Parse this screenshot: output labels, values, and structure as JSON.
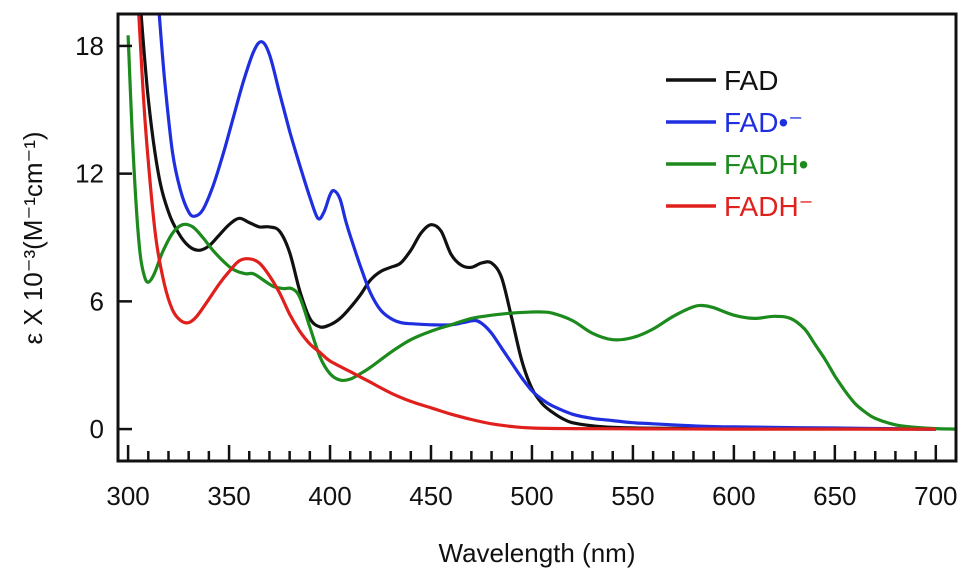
{
  "chart_data": {
    "type": "line",
    "xlabel": "Wavelength (nm)",
    "ylabel": "ε X 10⁻³(M⁻¹cm⁻¹)",
    "xlim": [
      295,
      710
    ],
    "ylim": [
      -1.5,
      19.5
    ],
    "x_ticks": [
      300,
      350,
      400,
      450,
      500,
      550,
      600,
      650,
      700
    ],
    "y_ticks": [
      0,
      6,
      12,
      18
    ],
    "legend_position": "top-right",
    "grid": false,
    "series": [
      {
        "name": "FAD",
        "color": "#111111",
        "points": [
          [
            306,
            20
          ],
          [
            310,
            15.5
          ],
          [
            315,
            12
          ],
          [
            320,
            10.2
          ],
          [
            325,
            9.2
          ],
          [
            330,
            8.6
          ],
          [
            335,
            8.4
          ],
          [
            340,
            8.6
          ],
          [
            345,
            9.1
          ],
          [
            350,
            9.6
          ],
          [
            355,
            9.9
          ],
          [
            360,
            9.7
          ],
          [
            365,
            9.5
          ],
          [
            370,
            9.5
          ],
          [
            375,
            9.3
          ],
          [
            380,
            8.3
          ],
          [
            385,
            6.5
          ],
          [
            390,
            5.2
          ],
          [
            395,
            4.8
          ],
          [
            400,
            4.9
          ],
          [
            405,
            5.2
          ],
          [
            410,
            5.7
          ],
          [
            415,
            6.3
          ],
          [
            420,
            7.0
          ],
          [
            425,
            7.4
          ],
          [
            430,
            7.6
          ],
          [
            435,
            7.8
          ],
          [
            440,
            8.4
          ],
          [
            445,
            9.2
          ],
          [
            450,
            9.6
          ],
          [
            455,
            9.3
          ],
          [
            460,
            8.2
          ],
          [
            465,
            7.7
          ],
          [
            470,
            7.6
          ],
          [
            475,
            7.8
          ],
          [
            480,
            7.8
          ],
          [
            485,
            7.1
          ],
          [
            490,
            5.2
          ],
          [
            495,
            3.2
          ],
          [
            500,
            1.9
          ],
          [
            505,
            1.2
          ],
          [
            510,
            0.8
          ],
          [
            515,
            0.5
          ],
          [
            520,
            0.3
          ],
          [
            530,
            0.15
          ],
          [
            540,
            0.08
          ],
          [
            560,
            0.04
          ],
          [
            600,
            0.02
          ],
          [
            650,
            0.01
          ],
          [
            700,
            0
          ]
        ]
      },
      {
        "name": "FAD•⁻",
        "color": "#1f2fe0",
        "points": [
          [
            315,
            20
          ],
          [
            318,
            16.5
          ],
          [
            322,
            13
          ],
          [
            326,
            11.2
          ],
          [
            330,
            10.2
          ],
          [
            333,
            10.0
          ],
          [
            337,
            10.3
          ],
          [
            342,
            11.4
          ],
          [
            347,
            12.9
          ],
          [
            352,
            14.6
          ],
          [
            357,
            16.3
          ],
          [
            362,
            17.7
          ],
          [
            366,
            18.2
          ],
          [
            370,
            17.6
          ],
          [
            375,
            15.8
          ],
          [
            380,
            14.0
          ],
          [
            385,
            12.4
          ],
          [
            390,
            10.9
          ],
          [
            394,
            9.9
          ],
          [
            397,
            10.2
          ],
          [
            400,
            11.0
          ],
          [
            402,
            11.2
          ],
          [
            405,
            10.8
          ],
          [
            408,
            9.7
          ],
          [
            412,
            8.5
          ],
          [
            416,
            7.4
          ],
          [
            420,
            6.4
          ],
          [
            425,
            5.6
          ],
          [
            430,
            5.2
          ],
          [
            435,
            5.0
          ],
          [
            440,
            4.95
          ],
          [
            450,
            4.9
          ],
          [
            460,
            4.9
          ],
          [
            466,
            5.0
          ],
          [
            472,
            5.1
          ],
          [
            476,
            4.9
          ],
          [
            480,
            4.5
          ],
          [
            485,
            3.8
          ],
          [
            490,
            3.1
          ],
          [
            495,
            2.4
          ],
          [
            500,
            1.8
          ],
          [
            505,
            1.4
          ],
          [
            510,
            1.1
          ],
          [
            520,
            0.7
          ],
          [
            530,
            0.5
          ],
          [
            540,
            0.4
          ],
          [
            550,
            0.3
          ],
          [
            560,
            0.25
          ],
          [
            580,
            0.15
          ],
          [
            600,
            0.1
          ],
          [
            650,
            0.05
          ],
          [
            700,
            0
          ]
        ]
      },
      {
        "name": "FADH•",
        "color": "#1c8a1c",
        "points": [
          [
            300,
            18.5
          ],
          [
            302,
            14
          ],
          [
            304,
            10.5
          ],
          [
            306,
            8.2
          ],
          [
            308,
            7.2
          ],
          [
            310,
            6.9
          ],
          [
            313,
            7.3
          ],
          [
            317,
            8.3
          ],
          [
            322,
            9.2
          ],
          [
            327,
            9.6
          ],
          [
            332,
            9.5
          ],
          [
            337,
            9.0
          ],
          [
            342,
            8.4
          ],
          [
            347,
            7.9
          ],
          [
            352,
            7.5
          ],
          [
            358,
            7.3
          ],
          [
            362,
            7.3
          ],
          [
            367,
            7.0
          ],
          [
            372,
            6.7
          ],
          [
            377,
            6.6
          ],
          [
            381,
            6.6
          ],
          [
            385,
            6.2
          ],
          [
            390,
            4.8
          ],
          [
            395,
            3.4
          ],
          [
            400,
            2.6
          ],
          [
            405,
            2.3
          ],
          [
            410,
            2.35
          ],
          [
            415,
            2.6
          ],
          [
            420,
            2.9
          ],
          [
            430,
            3.6
          ],
          [
            440,
            4.2
          ],
          [
            450,
            4.6
          ],
          [
            460,
            4.9
          ],
          [
            470,
            5.2
          ],
          [
            480,
            5.35
          ],
          [
            490,
            5.45
          ],
          [
            500,
            5.5
          ],
          [
            505,
            5.5
          ],
          [
            510,
            5.45
          ],
          [
            520,
            5.1
          ],
          [
            530,
            4.5
          ],
          [
            540,
            4.2
          ],
          [
            550,
            4.3
          ],
          [
            560,
            4.7
          ],
          [
            570,
            5.3
          ],
          [
            580,
            5.75
          ],
          [
            585,
            5.8
          ],
          [
            590,
            5.7
          ],
          [
            600,
            5.35
          ],
          [
            610,
            5.2
          ],
          [
            620,
            5.3
          ],
          [
            628,
            5.2
          ],
          [
            635,
            4.7
          ],
          [
            640,
            4.0
          ],
          [
            645,
            3.3
          ],
          [
            650,
            2.5
          ],
          [
            655,
            1.8
          ],
          [
            660,
            1.2
          ],
          [
            665,
            0.8
          ],
          [
            670,
            0.5
          ],
          [
            680,
            0.2
          ],
          [
            690,
            0.08
          ],
          [
            700,
            0.02
          ],
          [
            710,
            0
          ]
        ]
      },
      {
        "name": "FADH⁻",
        "color": "#e0201c",
        "points": [
          [
            305,
            20
          ],
          [
            308,
            15
          ],
          [
            311,
            11.5
          ],
          [
            314,
            8.8
          ],
          [
            318,
            6.8
          ],
          [
            322,
            5.6
          ],
          [
            326,
            5.1
          ],
          [
            330,
            5.0
          ],
          [
            334,
            5.3
          ],
          [
            340,
            6.1
          ],
          [
            345,
            6.8
          ],
          [
            350,
            7.4
          ],
          [
            355,
            7.9
          ],
          [
            360,
            8.0
          ],
          [
            365,
            7.8
          ],
          [
            370,
            7.2
          ],
          [
            375,
            6.4
          ],
          [
            380,
            5.4
          ],
          [
            385,
            4.6
          ],
          [
            390,
            4.0
          ],
          [
            395,
            3.6
          ],
          [
            400,
            3.2
          ],
          [
            410,
            2.7
          ],
          [
            420,
            2.2
          ],
          [
            430,
            1.7
          ],
          [
            440,
            1.3
          ],
          [
            450,
            1.0
          ],
          [
            460,
            0.7
          ],
          [
            470,
            0.45
          ],
          [
            480,
            0.25
          ],
          [
            490,
            0.12
          ],
          [
            500,
            0.05
          ],
          [
            520,
            0.02
          ],
          [
            560,
            0.01
          ],
          [
            600,
            0
          ],
          [
            700,
            0
          ]
        ]
      }
    ]
  }
}
